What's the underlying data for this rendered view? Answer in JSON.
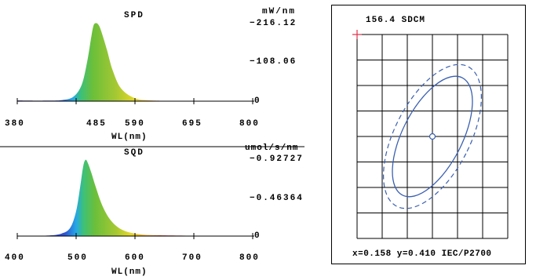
{
  "spd": {
    "title": "SPD",
    "unit": "mW/nm",
    "y_max": "216.12",
    "y_mid": "108.06",
    "y_zero": "0",
    "x_ticks": [
      "380",
      "485",
      "590",
      "695",
      "800"
    ],
    "x_label": "WL(nm)"
  },
  "sqd": {
    "title": "SQD",
    "unit": "umol/s/nm",
    "y_max": "0.92727",
    "y_mid": "0.46364",
    "y_zero": "0",
    "x_ticks": [
      "400",
      "500",
      "600",
      "700",
      "800"
    ],
    "x_label": "WL(nm)"
  },
  "chromaticity": {
    "cct_label": "156.4 SDCM",
    "readout": "x=0.158 y=0.410 IEC/P2700"
  },
  "colors": {
    "ellipse": "#3a5fb0",
    "cross": "#e0304a",
    "axis": "#000000"
  },
  "chart_data": [
    {
      "type": "area",
      "title": "SPD",
      "xlabel": "WL(nm)",
      "ylabel": "mW/nm",
      "xlim": [
        380,
        800
      ],
      "ylim": [
        0,
        216.12
      ],
      "x": [
        380,
        430,
        460,
        480,
        495,
        505,
        512,
        516,
        520,
        525,
        530,
        540,
        550,
        565,
        590,
        620,
        680,
        800
      ],
      "values": [
        2,
        1.5,
        3,
        12,
        45,
        110,
        175,
        206,
        213,
        208,
        190,
        140,
        85,
        35,
        8,
        2,
        1,
        0
      ]
    },
    {
      "type": "area",
      "title": "SQD",
      "xlabel": "WL(nm)",
      "ylabel": "umol/s/nm",
      "xlim": [
        400,
        800
      ],
      "ylim": [
        0,
        0.92727
      ],
      "x": [
        400,
        450,
        475,
        490,
        500,
        507,
        512,
        516,
        520,
        526,
        533,
        545,
        560,
        580,
        610,
        650,
        720,
        800
      ],
      "values": [
        0.004,
        0.006,
        0.03,
        0.1,
        0.3,
        0.6,
        0.84,
        0.92,
        0.88,
        0.76,
        0.6,
        0.36,
        0.18,
        0.07,
        0.02,
        0.008,
        0.003,
        0
      ]
    }
  ]
}
